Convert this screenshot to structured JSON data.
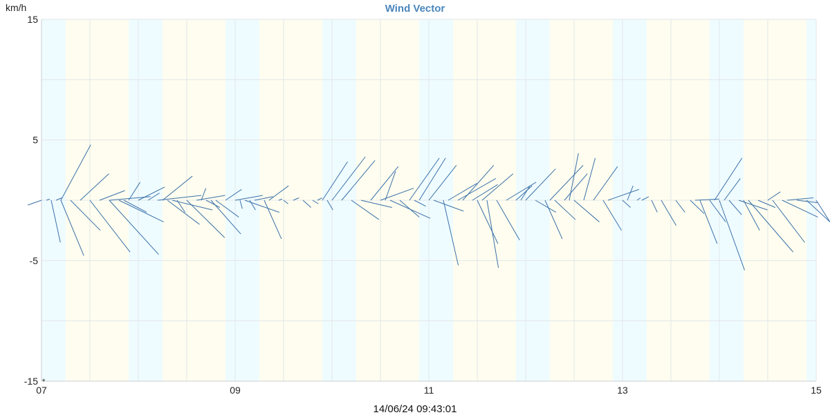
{
  "chart_data": {
    "type": "wind-vector",
    "title": "Wind Vector",
    "ylabel": "km/h",
    "ylim": [
      -15,
      15
    ],
    "y_ticks": [
      "15",
      "5",
      "-5",
      "-15"
    ],
    "y_tick_values": [
      15,
      5,
      -5,
      -15
    ],
    "x_ticks": [
      "07",
      "09",
      "11",
      "13",
      "15"
    ],
    "x_tick_values": [
      7,
      9,
      11,
      13,
      15
    ],
    "xlim": [
      7,
      15
    ],
    "grid": true,
    "timestamp": "14/06/24 09:43:01",
    "colors": {
      "vector": "#3a70a8",
      "night_band": "#effcff",
      "day_band": "#fefdef",
      "grid": "#e2e6ea",
      "title": "#4a86bc"
    },
    "night_bands": [
      [
        7.0,
        7.25
      ],
      [
        7.9,
        8.25
      ],
      [
        8.9,
        9.25
      ],
      [
        9.9,
        10.25
      ],
      [
        10.9,
        11.25
      ],
      [
        11.9,
        12.25
      ],
      [
        12.9,
        13.25
      ],
      [
        13.9,
        14.25
      ],
      [
        14.9,
        15.0
      ]
    ],
    "vectors": [
      {
        "x": 7.0,
        "u": -1.2,
        "v": -0.4
      },
      {
        "x": 7.05,
        "u": 0.3,
        "v": 0.1
      },
      {
        "x": 7.1,
        "u": 0.8,
        "v": -3.5
      },
      {
        "x": 7.15,
        "u": 0.5,
        "v": 0.2
      },
      {
        "x": 7.2,
        "u": 2.6,
        "v": 4.6
      },
      {
        "x": 7.2,
        "u": 2.0,
        "v": -4.6
      },
      {
        "x": 7.3,
        "u": 2.6,
        "v": -2.5
      },
      {
        "x": 7.4,
        "u": 2.5,
        "v": 2.2
      },
      {
        "x": 7.5,
        "u": 3.5,
        "v": -4.3
      },
      {
        "x": 7.6,
        "u": 2.2,
        "v": 0.8
      },
      {
        "x": 7.7,
        "u": 4.3,
        "v": -4.5
      },
      {
        "x": 7.7,
        "u": 3.6,
        "v": 0.3
      },
      {
        "x": 7.8,
        "u": 3.9,
        "v": -1.8
      },
      {
        "x": 7.85,
        "u": 2.0,
        "v": -1.0
      },
      {
        "x": 7.9,
        "u": 1.0,
        "v": 1.5
      },
      {
        "x": 8.0,
        "u": 2.3,
        "v": 1.1
      },
      {
        "x": 8.1,
        "u": 1.0,
        "v": 0.6
      },
      {
        "x": 8.2,
        "u": 3.8,
        "v": 0.4
      },
      {
        "x": 8.25,
        "u": 2.6,
        "v": 2.0
      },
      {
        "x": 8.3,
        "u": 2.8,
        "v": -2.0
      },
      {
        "x": 8.35,
        "u": 3.5,
        "v": -0.8
      },
      {
        "x": 8.4,
        "u": 0.7,
        "v": -1.0
      },
      {
        "x": 8.5,
        "u": 3.3,
        "v": -3.1
      },
      {
        "x": 8.6,
        "u": 2.5,
        "v": 0.4
      },
      {
        "x": 8.65,
        "u": 0.4,
        "v": 1.0
      },
      {
        "x": 8.7,
        "u": 1.2,
        "v": -0.6
      },
      {
        "x": 8.75,
        "u": 2.6,
        "v": -2.8
      },
      {
        "x": 8.8,
        "u": 2.0,
        "v": -1.4
      },
      {
        "x": 8.9,
        "u": 1.4,
        "v": 0.9
      },
      {
        "x": 9.0,
        "u": 2.4,
        "v": 0.4
      },
      {
        "x": 9.05,
        "u": 0.2,
        "v": -0.7
      },
      {
        "x": 9.1,
        "u": 3.0,
        "v": -1.0
      },
      {
        "x": 9.15,
        "u": 0.5,
        "v": -0.8
      },
      {
        "x": 9.2,
        "u": 1.6,
        "v": 0.3
      },
      {
        "x": 9.3,
        "u": 1.5,
        "v": -3.2
      },
      {
        "x": 9.35,
        "u": 1.7,
        "v": 1.2
      },
      {
        "x": 9.45,
        "u": 0.3,
        "v": 0.1
      },
      {
        "x": 9.5,
        "u": 0.4,
        "v": -0.3
      },
      {
        "x": 9.6,
        "u": 0.5,
        "v": 0.2
      },
      {
        "x": 9.7,
        "u": 0.7,
        "v": -0.6
      },
      {
        "x": 9.8,
        "u": 0.5,
        "v": -0.3
      },
      {
        "x": 9.85,
        "u": 0.4,
        "v": 0.2
      },
      {
        "x": 9.9,
        "u": 2.2,
        "v": 3.2
      },
      {
        "x": 9.95,
        "u": 0.5,
        "v": -0.8
      },
      {
        "x": 10.0,
        "u": 2.9,
        "v": 3.6
      },
      {
        "x": 10.1,
        "u": 2.9,
        "v": 3.3
      },
      {
        "x": 10.2,
        "u": 2.4,
        "v": -1.6
      },
      {
        "x": 10.3,
        "u": 2.7,
        "v": -0.6
      },
      {
        "x": 10.4,
        "u": 2.4,
        "v": 2.8
      },
      {
        "x": 10.5,
        "u": 2.9,
        "v": 1.0
      },
      {
        "x": 10.55,
        "u": 0.9,
        "v": 2.4
      },
      {
        "x": 10.6,
        "u": 3.5,
        "v": -1.5
      },
      {
        "x": 10.7,
        "u": 1.7,
        "v": -1.4
      },
      {
        "x": 10.8,
        "u": 2.6,
        "v": 3.5
      },
      {
        "x": 10.85,
        "u": 1.0,
        "v": -0.5
      },
      {
        "x": 10.9,
        "u": 2.3,
        "v": 3.5
      },
      {
        "x": 11.0,
        "u": 2.4,
        "v": 2.9
      },
      {
        "x": 11.05,
        "u": 2.6,
        "v": -0.9
      },
      {
        "x": 11.15,
        "u": 1.3,
        "v": -5.4
      },
      {
        "x": 11.2,
        "u": 2.5,
        "v": 1.4
      },
      {
        "x": 11.3,
        "u": 3.3,
        "v": 1.8
      },
      {
        "x": 11.35,
        "u": 2.7,
        "v": 2.9
      },
      {
        "x": 11.45,
        "u": 2.2,
        "v": 1.3
      },
      {
        "x": 11.5,
        "u": 1.8,
        "v": -3.6
      },
      {
        "x": 11.55,
        "u": 2.7,
        "v": 2.2
      },
      {
        "x": 11.6,
        "u": 1.0,
        "v": -5.6
      },
      {
        "x": 11.7,
        "u": 2.0,
        "v": -3.3
      },
      {
        "x": 11.8,
        "u": 2.6,
        "v": 1.5
      },
      {
        "x": 11.9,
        "u": 1.4,
        "v": 1.2
      },
      {
        "x": 11.95,
        "u": 0.8,
        "v": 1.2
      },
      {
        "x": 12.0,
        "u": 2.6,
        "v": 2.6
      },
      {
        "x": 12.1,
        "u": 1.8,
        "v": -1.0
      },
      {
        "x": 12.2,
        "u": 1.5,
        "v": -3.2
      },
      {
        "x": 12.25,
        "u": 2.9,
        "v": 2.9
      },
      {
        "x": 12.3,
        "u": 1.8,
        "v": -1.6
      },
      {
        "x": 12.4,
        "u": 2.0,
        "v": 2.2
      },
      {
        "x": 12.45,
        "u": 0.8,
        "v": 3.9
      },
      {
        "x": 12.5,
        "u": 2.2,
        "v": -1.8
      },
      {
        "x": 12.6,
        "u": 1.0,
        "v": 3.5
      },
      {
        "x": 12.7,
        "u": 2.1,
        "v": 2.8
      },
      {
        "x": 12.8,
        "u": 1.6,
        "v": -2.5
      },
      {
        "x": 12.85,
        "u": 2.7,
        "v": 0.9
      },
      {
        "x": 13.0,
        "u": 0.7,
        "v": -0.6
      },
      {
        "x": 13.05,
        "u": 0.5,
        "v": 1.2
      },
      {
        "x": 13.15,
        "u": 0.3,
        "v": 0.2
      },
      {
        "x": 13.2,
        "u": 0.6,
        "v": 0.3
      },
      {
        "x": 13.3,
        "u": 0.5,
        "v": -1.0
      },
      {
        "x": 13.4,
        "u": 1.3,
        "v": -2.1
      },
      {
        "x": 13.55,
        "u": 0.8,
        "v": -1.0
      },
      {
        "x": 13.7,
        "u": 1.2,
        "v": -1.1
      },
      {
        "x": 13.75,
        "u": 2.1,
        "v": 0.1
      },
      {
        "x": 13.8,
        "u": 1.5,
        "v": -3.6
      },
      {
        "x": 13.9,
        "u": 1.4,
        "v": -1.8
      },
      {
        "x": 13.95,
        "u": 2.4,
        "v": 3.5
      },
      {
        "x": 14.0,
        "u": 2.2,
        "v": -5.8
      },
      {
        "x": 14.05,
        "u": 1.4,
        "v": 1.8
      },
      {
        "x": 14.1,
        "u": 1.1,
        "v": -1.2
      },
      {
        "x": 14.2,
        "u": 2.5,
        "v": -0.8
      },
      {
        "x": 14.25,
        "u": 1.4,
        "v": -2.5
      },
      {
        "x": 14.3,
        "u": 3.9,
        "v": -4.3
      },
      {
        "x": 14.4,
        "u": 1.5,
        "v": -0.6
      },
      {
        "x": 14.5,
        "u": 1.1,
        "v": 0.7
      },
      {
        "x": 14.55,
        "u": 2.8,
        "v": -3.5
      },
      {
        "x": 14.65,
        "u": 3.1,
        "v": -1.4
      },
      {
        "x": 14.7,
        "u": 2.3,
        "v": 0.2
      },
      {
        "x": 14.8,
        "u": 1.8,
        "v": -0.2
      },
      {
        "x": 14.9,
        "u": 2.2,
        "v": -1.8
      },
      {
        "x": 15.0,
        "u": 2.0,
        "v": -1.8
      }
    ]
  }
}
